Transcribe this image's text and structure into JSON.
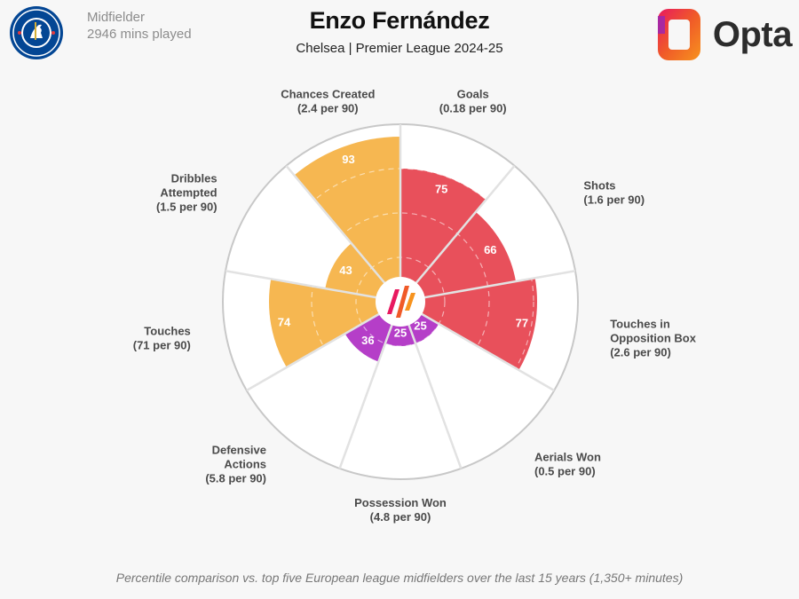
{
  "player": {
    "name": "Enzo Fernández",
    "position": "Midfielder",
    "minutes": "2946 mins played",
    "team_league": "Chelsea | Premier League 2024-25"
  },
  "club": {
    "name": "Chelsea",
    "badge_text": "CHELSEA FOOTBALL CLUB",
    "colors": {
      "primary": "#034694",
      "ring": "#ffffff",
      "accent": "#d4af37"
    }
  },
  "brand": {
    "name": "Opta",
    "colors": [
      "#e8195f",
      "#f7931e",
      "#9c27b0"
    ]
  },
  "footnote": "Percentile comparison vs. top five European league midfielders over the last 15 years (1,350+ minutes)",
  "chart_data": {
    "type": "polar-bar",
    "title": "Enzo Fernández",
    "subtitle": "Chelsea | Premier League 2024-25",
    "scale": [
      0,
      100
    ],
    "gridlines": [
      25,
      50,
      75
    ],
    "categories": [
      {
        "name": "Goals",
        "label_lines": [
          "Goals",
          "(0.18 per 90)"
        ],
        "percentile": 75,
        "group": "attacking"
      },
      {
        "name": "Shots",
        "label_lines": [
          "Shots",
          "(1.6 per 90)"
        ],
        "percentile": 66,
        "group": "attacking"
      },
      {
        "name": "Touches in Opposition Box",
        "label_lines": [
          "Touches in",
          "Opposition Box",
          "(2.6 per 90)"
        ],
        "percentile": 77,
        "group": "attacking"
      },
      {
        "name": "Aerials Won",
        "label_lines": [
          "Aerials Won",
          "(0.5 per 90)"
        ],
        "percentile": 25,
        "group": "defensive"
      },
      {
        "name": "Possession Won",
        "label_lines": [
          "Possession Won",
          "(4.8 per 90)"
        ],
        "percentile": 25,
        "group": "defensive"
      },
      {
        "name": "Defensive Actions",
        "label_lines": [
          "Defensive",
          "Actions",
          "(5.8 per 90)"
        ],
        "percentile": 36,
        "group": "defensive"
      },
      {
        "name": "Touches",
        "label_lines": [
          "Touches",
          "(71 per 90)"
        ],
        "percentile": 74,
        "group": "possession"
      },
      {
        "name": "Dribbles Attempted",
        "label_lines": [
          "Dribbles",
          "Attempted",
          "(1.5 per 90)"
        ],
        "percentile": 43,
        "group": "possession"
      },
      {
        "name": "Chances Created",
        "label_lines": [
          "Chances Created",
          "(2.4 per 90)"
        ],
        "percentile": 93,
        "group": "possession"
      }
    ],
    "group_colors": {
      "attacking": "#e8505b",
      "defensive": "#b53ec8",
      "possession": "#f6b751"
    }
  }
}
